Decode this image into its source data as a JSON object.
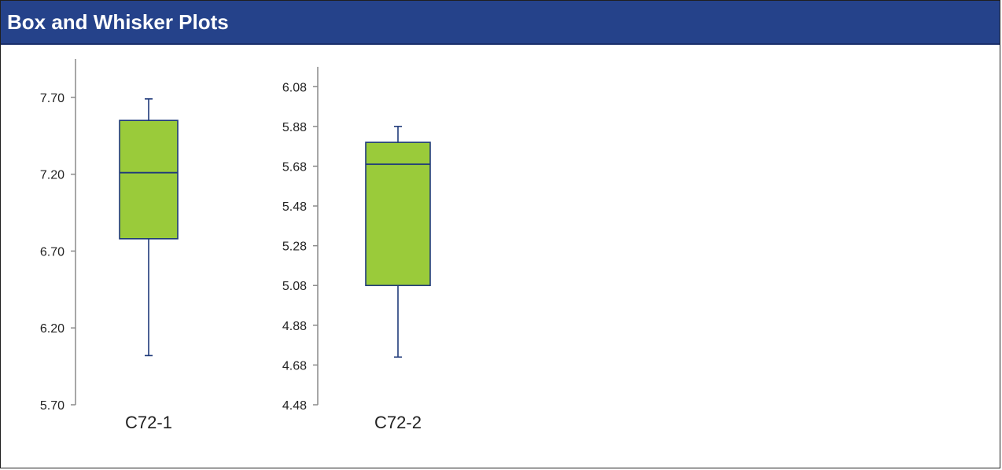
{
  "colors": {
    "header_bg": "#25428a",
    "header_text": "#ffffff",
    "box_fill": "#9acb3a",
    "box_stroke": "#1f3a7a",
    "axis": "#8a8a8a"
  },
  "header": {
    "title": "Box and Whisker Plots"
  },
  "chart_data": [
    {
      "type": "box",
      "category": "C72-1",
      "ylim": [
        5.7,
        7.95
      ],
      "yticks": [
        "5.70",
        "6.20",
        "6.70",
        "7.20",
        "7.70"
      ],
      "ytick_values": [
        5.7,
        6.2,
        6.7,
        7.2,
        7.7
      ],
      "min": 6.02,
      "q1": 6.78,
      "median": 7.21,
      "q3": 7.55,
      "max": 7.69
    },
    {
      "type": "box",
      "category": "C72-2",
      "ylim": [
        4.48,
        6.18
      ],
      "yticks": [
        "4.48",
        "4.68",
        "4.88",
        "5.08",
        "5.28",
        "5.48",
        "5.68",
        "5.88",
        "6.08"
      ],
      "ytick_values": [
        4.48,
        4.68,
        4.88,
        5.08,
        5.28,
        5.48,
        5.68,
        5.88,
        6.08
      ],
      "min": 4.72,
      "q1": 5.08,
      "median": 5.69,
      "q3": 5.8,
      "max": 5.88
    }
  ]
}
